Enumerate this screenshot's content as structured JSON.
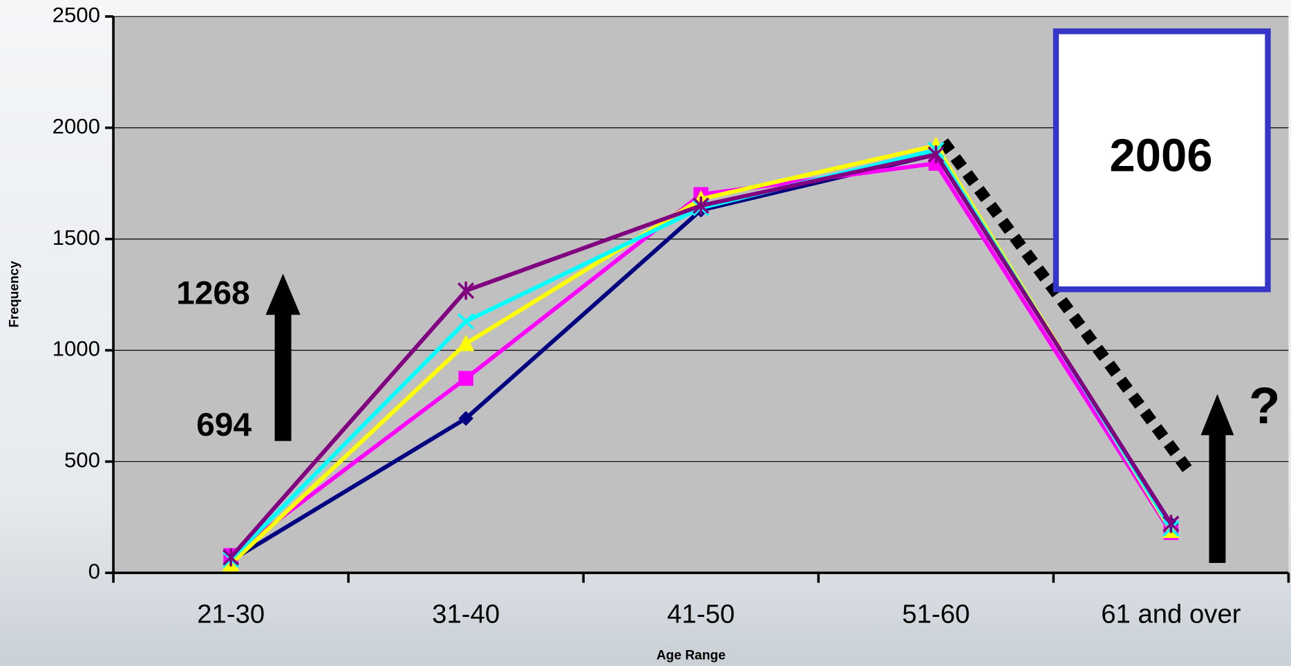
{
  "chart_data": {
    "type": "line",
    "x_label": "Age Range",
    "y_label": "Frequency",
    "categories": [
      "21-30",
      "31-40",
      "41-50",
      "51-60",
      "61 and over"
    ],
    "series": [
      {
        "color": "#000080",
        "marker": "diamond",
        "values": [
          55,
          694,
          1630,
          1880,
          220
        ]
      },
      {
        "color": "#ff00ff",
        "marker": "square",
        "values": [
          78,
          874,
          1700,
          1840,
          181
        ]
      },
      {
        "color": "#ffff00",
        "marker": "triangle",
        "values": [
          40,
          1030,
          1680,
          1920,
          190
        ]
      },
      {
        "color": "#00ffff",
        "marker": "x",
        "values": [
          60,
          1130,
          1640,
          1900,
          200
        ]
      },
      {
        "color": "#800080",
        "marker": "star",
        "values": [
          70,
          1268,
          1650,
          1880,
          220
        ]
      }
    ],
    "ylim": [
      0,
      2500
    ],
    "yticks": [
      0,
      500,
      1000,
      1500,
      2000,
      2500
    ],
    "grid": true,
    "annotations": [
      "1268",
      "694",
      "2006",
      "?"
    ]
  }
}
